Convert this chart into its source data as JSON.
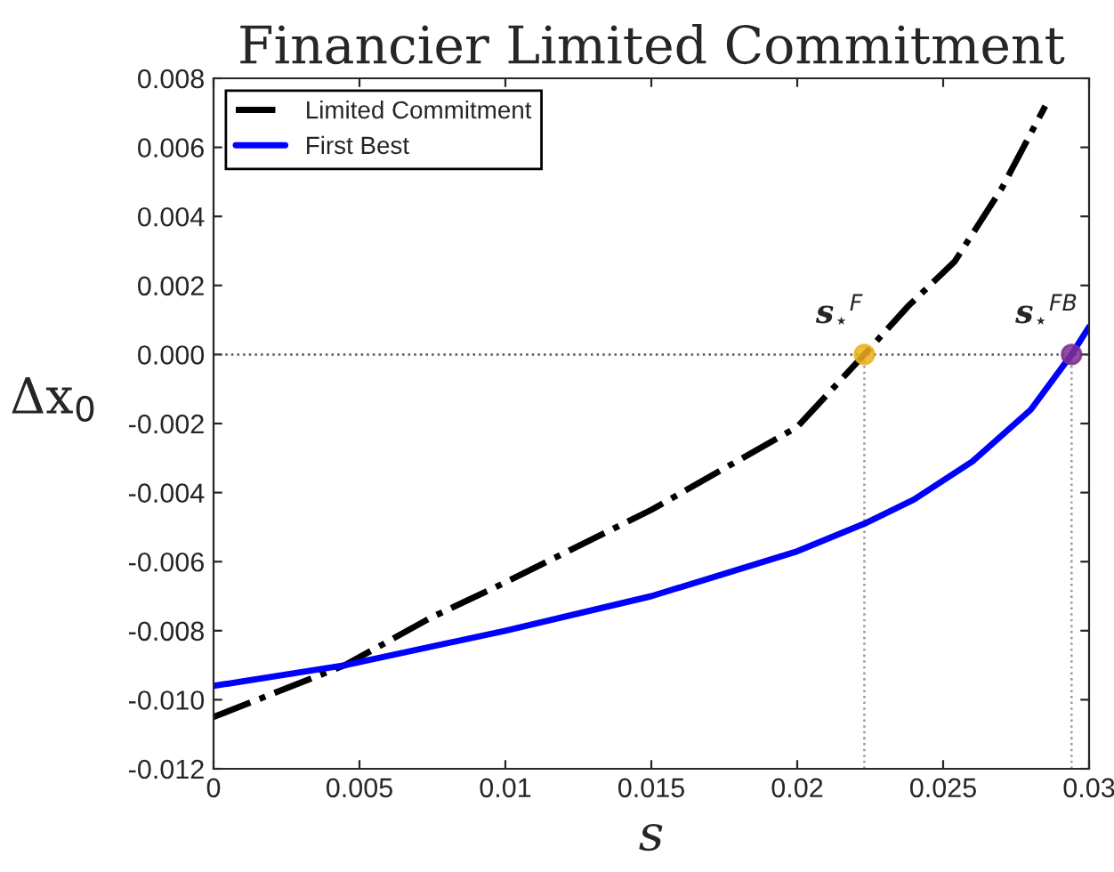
{
  "chart_data": {
    "type": "line",
    "title": "Financier Limited Commitment",
    "xlabel": "s",
    "ylabel": "Δx$_{0}$",
    "series": [
      {
        "name": "Limited Commitment",
        "color": "#000000",
        "line_style": "dashdot",
        "x": [
          0,
          0.0045,
          0.0075,
          0.01,
          0.015,
          0.02,
          0.0223,
          0.0238,
          0.0254,
          0.027,
          0.0285
        ],
        "values": [
          -0.0105,
          -0.009,
          -0.0076,
          -0.0066,
          -0.0045,
          -0.0021,
          0,
          0.0014,
          0.0027,
          0.0048,
          0.0072
        ]
      },
      {
        "name": "First Best",
        "color": "#0000ff",
        "line_style": "solid",
        "x": [
          0,
          0.0045,
          0.01,
          0.015,
          0.02,
          0.0223,
          0.024,
          0.026,
          0.028,
          0.0294,
          0.03
        ],
        "values": [
          -0.0096,
          -0.009,
          -0.008,
          -0.007,
          -0.0057,
          -0.0049,
          -0.0042,
          -0.0031,
          -0.0016,
          0,
          0.0008
        ]
      },
      {
        "type": "scatter",
        "color": "#edb120",
        "marker": "circle",
        "x": [
          0.0223
        ],
        "values": [
          0
        ]
      },
      {
        "type": "scatter",
        "color": "#7e2f8e",
        "marker": "circle",
        "x": [
          0.0294
        ],
        "values": [
          0
        ]
      }
    ],
    "annotations": [
      {
        "text": "s$_{⋆}$$^{F}$",
        "x": 0.0223,
        "y": 0
      },
      {
        "text": "s$_{⋆}$$^{FB}$",
        "x": 0.0294,
        "y": 0
      }
    ],
    "ref_lines": [
      {
        "axis": "y",
        "value": 0,
        "color": "#555555",
        "line_style": "dotted"
      },
      {
        "axis": "x",
        "value": 0.0223,
        "color": "#999999",
        "line_style": "dotted"
      },
      {
        "axis": "x",
        "value": 0.0294,
        "color": "#999999",
        "line_style": "dotted"
      }
    ],
    "xlim": [
      0,
      0.03
    ],
    "xticks": [
      0,
      0.005,
      0.01,
      0.015,
      0.02,
      0.025,
      0.03
    ],
    "ylim": [
      -0.012,
      0.008
    ],
    "yticks": [
      {
        "value": -0.012,
        "label": "-0.012"
      },
      {
        "value": -0.01,
        "label": "-0.010"
      },
      -0.008,
      -0.006,
      -0.004,
      -0.002,
      {
        "value": 0,
        "label": "0.000"
      },
      0.002,
      0.004,
      0.006,
      0.008
    ],
    "grid": false,
    "legend": "top left"
  }
}
